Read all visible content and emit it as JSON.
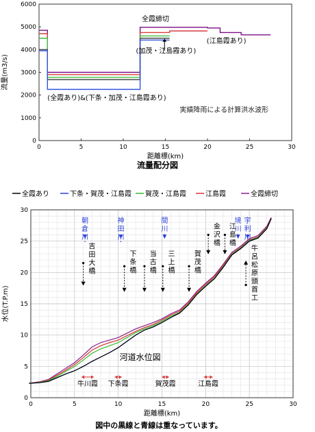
{
  "chart_data": [
    {
      "type": "line",
      "title": "流量配分図",
      "xlabel": "距離標(km)",
      "ylabel": "流量(m3/s)",
      "xlim": [
        0,
        30
      ],
      "ylim": [
        0,
        6000
      ],
      "xticks": [
        0,
        5,
        10,
        15,
        20,
        25,
        30
      ],
      "yticks": [
        0,
        1000,
        2000,
        3000,
        4000,
        5000,
        6000
      ],
      "grid": false,
      "series": [
        {
          "name": "全線締切",
          "color": "#7b0f86",
          "x": [
            0,
            0.3,
            0.3,
            1.0,
            1.0,
            12.0,
            12.0,
            20.0,
            20.0,
            21.5,
            21.5,
            24.0,
            24.0,
            27.5
          ],
          "y": [
            4850,
            4850,
            4850,
            4850,
            3000,
            3000,
            4980,
            4980,
            4950,
            4950,
            4750,
            4750,
            4650,
            4650
          ]
        },
        {
          "name": "江島霞あり",
          "color": "#d43f3f",
          "x": [
            0,
            0.3,
            0.3,
            1.0,
            1.0,
            12.0,
            12.0,
            15.5,
            15.5,
            20.0
          ],
          "y": [
            4700,
            4700,
            4700,
            4700,
            2900,
            2900,
            4750,
            4750,
            4820,
            4820
          ]
        },
        {
          "name": "賀茂・江島霞",
          "color": "#3fbf3f",
          "x": [
            0,
            0.3,
            0.3,
            1.0,
            1.0,
            12.0,
            12.0,
            15.5
          ],
          "y": [
            4500,
            4500,
            4500,
            4500,
            2780,
            2780,
            4600,
            4600
          ]
        },
        {
          "name": "全霞あり",
          "color": "#4a4a4a",
          "x": [
            0,
            0.3,
            0.3,
            1.0,
            1.0,
            12.0,
            12.0,
            15.5
          ],
          "y": [
            4000,
            4000,
            4000,
            4000,
            2680,
            2680,
            4500,
            4500
          ]
        },
        {
          "name": "下条・賀茂・江島霞",
          "color": "#3355dd",
          "x": [
            0,
            0.3,
            0.3,
            1.0,
            1.0,
            9.5,
            9.5,
            12.0,
            12.0,
            15.5
          ],
          "y": [
            3950,
            3950,
            3950,
            3950,
            2250,
            2250,
            2250,
            2250,
            4420,
            4420
          ]
        }
      ],
      "annotations": [
        {
          "text": "全霞締切"
        },
        {
          "text": "(加茂・江島霞あり)"
        },
        {
          "text": "(江島霞あり)"
        },
        {
          "text": "(全霞あり)&(下条・加茂・江島霞あり)"
        },
        {
          "text": "実績降雨による計算洪水波形"
        }
      ]
    },
    {
      "type": "line",
      "title": "河道水位図",
      "xlabel": "距離標(km)",
      "ylabel": "水位(T.P.m)",
      "xlim": [
        0,
        30
      ],
      "ylim": [
        0,
        30
      ],
      "xticks": [
        0,
        5,
        10,
        15,
        20,
        25,
        30
      ],
      "yticks": [
        0,
        5,
        10,
        15,
        20,
        25,
        30
      ],
      "grid": true,
      "x": [
        -0.2,
        1,
        2,
        3,
        4,
        5,
        6,
        7,
        8,
        9,
        10,
        11,
        12,
        13,
        14,
        15,
        16,
        17,
        18,
        19,
        20,
        21,
        22,
        23,
        24,
        25,
        26,
        27,
        27.5
      ],
      "series": [
        {
          "name": "全霞あり",
          "color": "#000000",
          "y": [
            2.3,
            2.4,
            2.6,
            3.2,
            3.8,
            4.3,
            5.0,
            5.8,
            6.5,
            7.2,
            8.0,
            9.0,
            10.0,
            10.8,
            11.3,
            12.0,
            12.8,
            13.5,
            14.8,
            16.5,
            17.8,
            19.0,
            20.8,
            22.8,
            23.8,
            25.0,
            25.5,
            27.0,
            28.6
          ]
        },
        {
          "name": "下条・賀茂・江島霞",
          "color": "#2d3fd8",
          "y": [
            2.3,
            2.4,
            2.6,
            3.2,
            3.8,
            4.3,
            5.0,
            5.8,
            6.5,
            7.2,
            8.0,
            9.0,
            10.0,
            10.8,
            11.3,
            12.0,
            12.8,
            13.5,
            14.8,
            16.5,
            17.8,
            19.0,
            20.8,
            22.8,
            23.8,
            25.0,
            25.5,
            27.0,
            28.6
          ]
        },
        {
          "name": "賀茂・江島霞",
          "color": "#2fbf2f",
          "y": [
            2.3,
            2.45,
            2.7,
            3.4,
            4.2,
            5.0,
            6.0,
            7.1,
            7.8,
            8.3,
            8.8,
            9.6,
            10.4,
            11.0,
            11.5,
            12.2,
            13.0,
            13.6,
            14.9,
            16.6,
            17.9,
            19.1,
            20.9,
            22.9,
            23.9,
            25.1,
            25.6,
            27.1,
            28.6
          ]
        },
        {
          "name": "江島霞",
          "color": "#d93232",
          "y": [
            2.3,
            2.5,
            2.8,
            3.6,
            4.4,
            5.3,
            6.4,
            7.6,
            8.3,
            8.8,
            9.2,
            9.9,
            10.6,
            11.2,
            11.7,
            12.4,
            13.2,
            13.8,
            15.1,
            16.8,
            18.1,
            19.3,
            21.1,
            23.0,
            24.0,
            25.2,
            25.7,
            27.2,
            28.7
          ]
        },
        {
          "name": "全霞締切",
          "color": "#8a1f8a",
          "y": [
            2.3,
            2.55,
            2.9,
            3.8,
            4.7,
            5.6,
            6.8,
            8.1,
            8.8,
            9.2,
            9.6,
            10.3,
            11.0,
            11.5,
            12.0,
            12.6,
            13.4,
            14.0,
            15.3,
            17.0,
            18.3,
            19.5,
            21.3,
            23.2,
            24.2,
            25.4,
            25.9,
            27.4,
            28.8
          ]
        }
      ],
      "river_labels": [
        {
          "text": "朝倉川",
          "km": 6.2,
          "y_top": 29.0,
          "y_arrow": 25.5
        },
        {
          "text": "神田川",
          "km": 10.3,
          "y_top": 29.0,
          "y_arrow": 25.5
        },
        {
          "text": "間川",
          "km": 15.3,
          "y_top": 29.0,
          "y_arrow": 25.5
        },
        {
          "text": "境川",
          "km": 23.7,
          "y_top": 29.0,
          "y_arrow": 25.5
        },
        {
          "text": "宇利川",
          "km": 24.8,
          "y_top": 29.0,
          "y_arrow": 25.5
        }
      ],
      "bridge_labels": [
        {
          "text": "吉田大橋",
          "km": 7.0,
          "y_text": 23.8,
          "arrow_x": 6.0,
          "y_from": 21.5,
          "y_to": 18.0
        },
        {
          "text": "下条橋",
          "km": 11.7,
          "y_text": 22.6,
          "arrow_x": 10.7,
          "y_from": 21.0,
          "y_to": 17.0
        },
        {
          "text": "当古橋",
          "km": 14.0,
          "y_text": 22.6,
          "arrow_x": 13.0,
          "y_from": 21.0,
          "y_to": 17.0
        },
        {
          "text": "三上橋",
          "km": 16.1,
          "y_text": 22.6,
          "arrow_x": 15.1,
          "y_from": 21.0,
          "y_to": 17.0
        },
        {
          "text": "賀茂橋",
          "km": 19.1,
          "y_text": 22.6,
          "arrow_x": 18.1,
          "y_from": 21.0,
          "y_to": 17.0
        },
        {
          "text": "金沢橋",
          "km": 21.3,
          "y_text": 27.0,
          "arrow_x": 20.3,
          "y_from": 26.0,
          "y_to": 23.0
        },
        {
          "text": "江島橋",
          "km": 23.1,
          "y_text": 27.0,
          "arrow_x": 22.2,
          "y_from": 26.0,
          "y_to": 23.0
        },
        {
          "text": "牛呂松原頭首工",
          "km": 25.6,
          "y_text": 23.5,
          "arrow_x": 24.6,
          "y_from": 18.0,
          "y_to": 21.8
        }
      ],
      "kasumi_labels": [
        {
          "text": "牛川霞",
          "km1": 5.8,
          "km2": 7.2,
          "y": 3.3
        },
        {
          "text": "下条霞",
          "km1": 9.6,
          "km2": 10.4,
          "y": 3.3
        },
        {
          "text": "賀茂霞",
          "km1": 15.0,
          "km2": 15.8,
          "y": 3.3
        },
        {
          "text": "江島霞",
          "km1": 19.8,
          "km2": 20.8,
          "y": 3.3
        }
      ],
      "annotations": [
        {
          "text": "河道水位図"
        }
      ]
    }
  ],
  "footnote": "図中の黒線と青線は重なっています。"
}
